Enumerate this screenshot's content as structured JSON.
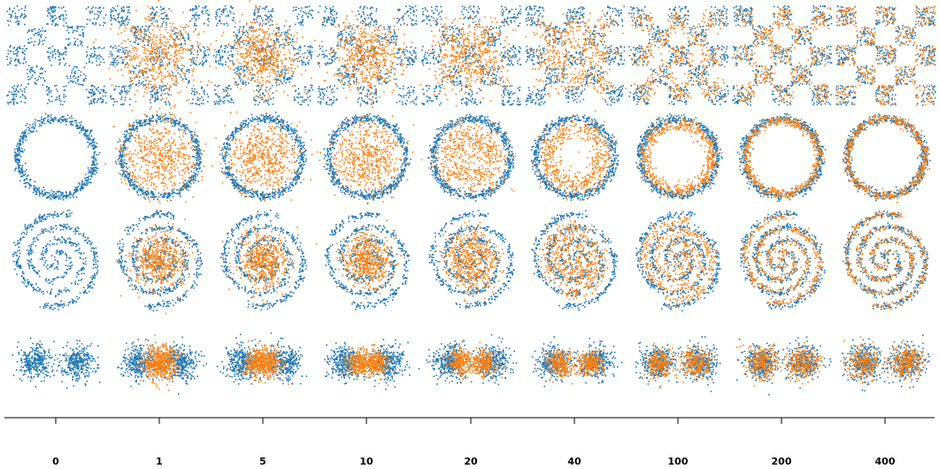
{
  "chart_data": {
    "type": "scatter",
    "title": "",
    "xlabel": "",
    "ylabel": "",
    "grid": false,
    "legend": "none",
    "columns": [
      "0",
      "1",
      "5",
      "10",
      "20",
      "40",
      "100",
      "200",
      "400"
    ],
    "rows": [
      "checkerboard",
      "ring",
      "spiral",
      "two-blobs"
    ],
    "colors": {
      "target": "#1f77b4",
      "generated": "#ff7f0e",
      "axis": "#000000"
    },
    "stage_progress": [
      0.0,
      0.05,
      0.25,
      0.4,
      0.55,
      0.72,
      0.86,
      0.94,
      1.0
    ]
  }
}
